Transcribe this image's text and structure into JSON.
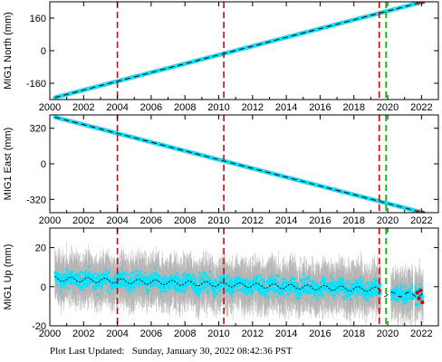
{
  "footer": {
    "label": "Plot Last Updated:",
    "timestamp": "Sunday, January 30, 2022 08:42:36 PST"
  },
  "colors": {
    "data": "#00e5ff",
    "error_bar": "#b4b4b4",
    "model": "#000000",
    "event_red": "#e00000",
    "event_green": "#00b400",
    "recent": "#e00000"
  },
  "chart_data": [
    {
      "type": "scatter",
      "ylabel": "MIG1 North (mm)",
      "xlim": [
        2000,
        2023
      ],
      "ylim": [
        -240,
        240
      ],
      "xticks": [
        2000,
        2002,
        2004,
        2006,
        2008,
        2010,
        2012,
        2014,
        2016,
        2018,
        2020,
        2022
      ],
      "yticks": [
        -160,
        0,
        160
      ],
      "trend": {
        "x": [
          2000.3,
          2022.1
        ],
        "y": [
          -230,
          240
        ]
      },
      "recent_points": {
        "x": [
          2021.8,
          2022.1
        ],
        "y": [
          236,
          240
        ]
      }
    },
    {
      "type": "scatter",
      "ylabel": "MIG1 East (mm)",
      "xlim": [
        2000,
        2023
      ],
      "ylim": [
        -440,
        440
      ],
      "xticks": [
        2000,
        2002,
        2004,
        2006,
        2008,
        2010,
        2012,
        2014,
        2016,
        2018,
        2020,
        2022
      ],
      "yticks": [
        -320,
        0,
        320
      ],
      "trend": {
        "x": [
          2000.3,
          2022.1
        ],
        "y": [
          420,
          -440
        ]
      },
      "recent_points": {
        "x": [
          2021.8,
          2022.1
        ],
        "y": [
          -435,
          -440
        ]
      }
    },
    {
      "type": "scatter",
      "ylabel": "MIG1 Up (mm)",
      "xlim": [
        2000,
        2023
      ],
      "ylim": [
        -20,
        30
      ],
      "xticks": [
        2000,
        2002,
        2004,
        2006,
        2008,
        2010,
        2012,
        2014,
        2016,
        2018,
        2020,
        2022
      ],
      "yticks": [
        -20,
        0,
        20
      ],
      "trend": {
        "x": [
          2000.3,
          2019.6
        ],
        "y": [
          4,
          -1.5
        ]
      },
      "seasonal_amplitude": 1.2,
      "noise": 4.5,
      "data_ranges": [
        [
          2000.3,
          2019.6
        ],
        [
          2020.2,
          2021.5
        ],
        [
          2021.6,
          2022.1
        ]
      ],
      "recent_points": {
        "x": [
          2021.75,
          2021.85,
          2021.95,
          2022.05
        ],
        "y": [
          -3,
          -6,
          -2,
          -8
        ]
      }
    }
  ],
  "events": [
    {
      "x": 2004.0,
      "color": "red"
    },
    {
      "x": 2010.3,
      "color": "red"
    },
    {
      "x": 2019.5,
      "color": "red"
    },
    {
      "x": 2019.9,
      "color": "green"
    }
  ]
}
